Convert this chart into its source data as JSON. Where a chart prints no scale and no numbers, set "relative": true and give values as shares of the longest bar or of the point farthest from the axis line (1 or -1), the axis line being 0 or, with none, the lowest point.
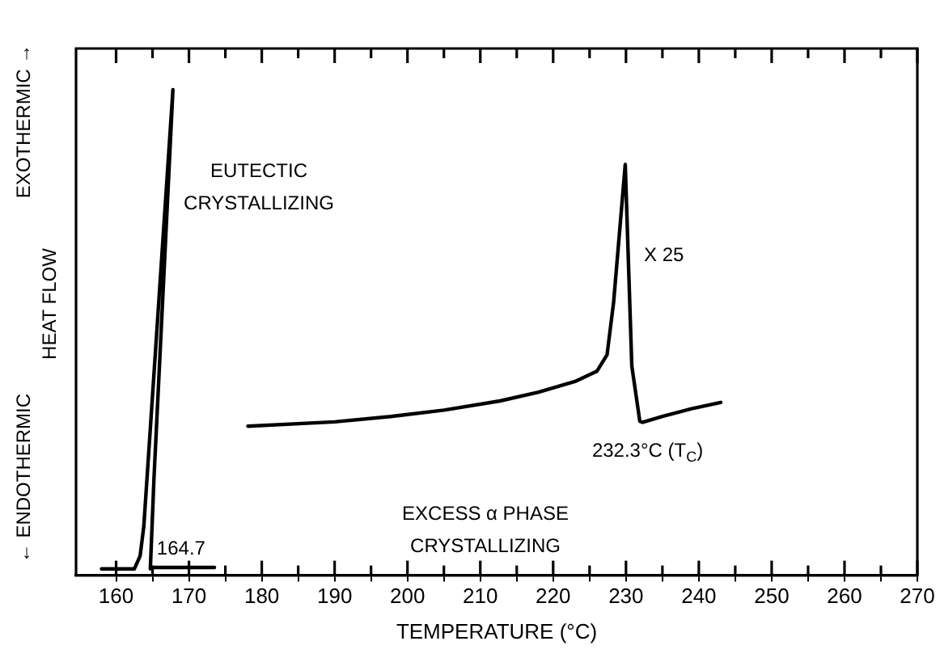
{
  "chart_data": {
    "type": "line",
    "relative": true,
    "xlabel": "TEMPERATURE (°C)",
    "ylabel": "HEAT FLOW",
    "xlim": [
      154.5,
      270
    ],
    "xticks": [
      160,
      {
        "value": 165,
        "label": null
      },
      170,
      {
        "value": 175,
        "label": null
      },
      180,
      {
        "value": 185,
        "label": null
      },
      190,
      {
        "value": 195,
        "label": null
      },
      200,
      {
        "value": 205,
        "label": null
      },
      210,
      {
        "value": 215,
        "label": null
      },
      220,
      {
        "value": 225,
        "label": null
      },
      230,
      {
        "value": 235,
        "label": null
      },
      240,
      {
        "value": 245,
        "label": null
      },
      250,
      {
        "value": 255,
        "label": null
      },
      260,
      {
        "value": 265,
        "label": null
      },
      270
    ],
    "grid": false,
    "legend": false,
    "marker": "none",
    "line_style": "solid",
    "series": [
      {
        "color": "#000000",
        "x": [
          158,
          162.5,
          163.3,
          163.8,
          167.8,
          165.2,
          164.7,
          165,
          173.5
        ],
        "values": [
          0.013,
          0.013,
          0.04,
          0.1,
          1,
          0.2,
          0.013,
          0.016,
          0.016
        ]
      },
      {
        "color": "#000000",
        "x": [
          178.1,
          190,
          197.7,
          205,
          212.7,
          218,
          223,
          226,
          227.4,
          228.3,
          229.9,
          230.8,
          231.9,
          232.3,
          235,
          239,
          243
        ],
        "values": [
          0.307,
          0.316,
          0.327,
          0.34,
          0.359,
          0.377,
          0.399,
          0.42,
          0.454,
          0.562,
          0.846,
          0.431,
          0.317,
          0.315,
          0.327,
          0.343,
          0.356
        ]
      }
    ],
    "annotations": [
      "EUTECTIC\nCRYSTALLIZING",
      "X 25",
      "EXCESS α PHASE\nCRYSTALLIZING",
      "← ENDOTHERMIC",
      "EXOTHERMIC →",
      {
        "text": "164.7",
        "x": 164.7,
        "y": 0.013
      },
      {
        "text": "232.3°C (T$_{C}$)",
        "x": 232.3,
        "y": 0.315
      }
    ]
  }
}
